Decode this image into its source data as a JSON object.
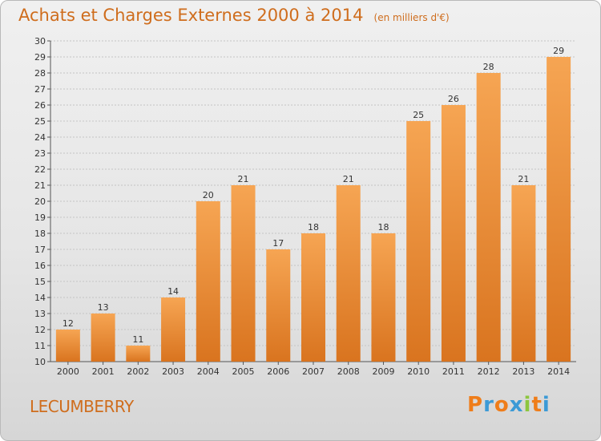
{
  "title": "Achats et Charges Externes 2000 à 2014",
  "unit_note": "(en milliers d'€)",
  "commune": "LECUMBERRY",
  "logo": {
    "text": "Proxiti",
    "letter_colors": [
      "#ef7d1a",
      "#3c9ad6",
      "#ef7d1a",
      "#3c9ad6",
      "#8dc63f",
      "#ef7d1a",
      "#3c9ad6"
    ]
  },
  "colors": {
    "accent": "#cf6d1d",
    "bar_top": "#f6a553",
    "bar_bottom": "#d9741f",
    "frame_border": "#b9b9b9"
  },
  "chart_data": {
    "type": "bar",
    "title": "Achats et Charges Externes 2000 à 2014",
    "xlabel": "",
    "ylabel": "",
    "categories": [
      "2000",
      "2001",
      "2002",
      "2003",
      "2004",
      "2005",
      "2006",
      "2007",
      "2008",
      "2009",
      "2010",
      "2011",
      "2012",
      "2013",
      "2014"
    ],
    "values": [
      12,
      13,
      11,
      14,
      20,
      21,
      17,
      18,
      21,
      18,
      25,
      26,
      28,
      21,
      29
    ],
    "ylim": [
      10,
      30
    ],
    "yticks": [
      10,
      11,
      12,
      13,
      14,
      15,
      16,
      17,
      18,
      19,
      20,
      21,
      22,
      23,
      24,
      25,
      26,
      27,
      28,
      29,
      30
    ],
    "grid": true,
    "data_labels": true
  }
}
